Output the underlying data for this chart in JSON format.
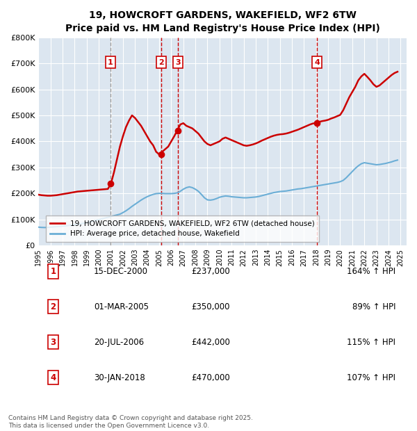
{
  "title": "19, HOWCROFT GARDENS, WAKEFIELD, WF2 6TW",
  "subtitle": "Price paid vs. HM Land Registry's House Price Index (HPI)",
  "background_color": "#ffffff",
  "chart_bg_color": "#dce6f0",
  "grid_color": "#ffffff",
  "ylim": [
    0,
    800000
  ],
  "yticks": [
    0,
    100000,
    200000,
    300000,
    400000,
    500000,
    600000,
    700000,
    800000
  ],
  "ytick_labels": [
    "£0",
    "£100K",
    "£200K",
    "£300K",
    "£400K",
    "£500K",
    "£600K",
    "£700K",
    "£800K"
  ],
  "xlim_start": 1995.0,
  "xlim_end": 2025.5,
  "xticks": [
    1995,
    1996,
    1997,
    1998,
    1999,
    2000,
    2001,
    2002,
    2003,
    2004,
    2005,
    2006,
    2007,
    2008,
    2009,
    2010,
    2011,
    2012,
    2013,
    2014,
    2015,
    2016,
    2017,
    2018,
    2019,
    2020,
    2021,
    2022,
    2023,
    2024,
    2025
  ],
  "hpi_line_color": "#6baed6",
  "price_line_color": "#cc0000",
  "sale_dot_color": "#cc0000",
  "vline_color_dashed": "#cc0000",
  "vline_color_gray": "#999999",
  "legend_box_color": "#ffffff",
  "legend_border_color": "#aaaaaa",
  "sale_label_color": "#cc0000",
  "sale_label_border": "#cc0000",
  "legend1": "19, HOWCROFT GARDENS, WAKEFIELD, WF2 6TW (detached house)",
  "legend2": "HPI: Average price, detached house, Wakefield",
  "footer": "Contains HM Land Registry data © Crown copyright and database right 2025.\nThis data is licensed under the Open Government Licence v3.0.",
  "sales": [
    {
      "num": 1,
      "date_dec": 2000.96,
      "price": 237000,
      "label": "15-DEC-2000",
      "pct": "164%",
      "vline_style": "dashed_gray"
    },
    {
      "num": 2,
      "date_dec": 2005.17,
      "price": 350000,
      "label": "01-MAR-2005",
      "pct": "89%",
      "vline_style": "dashed_red"
    },
    {
      "num": 3,
      "date_dec": 2006.55,
      "price": 442000,
      "label": "20-JUL-2006",
      "pct": "115%",
      "vline_style": "dashed_red"
    },
    {
      "num": 4,
      "date_dec": 2018.08,
      "price": 470000,
      "label": "30-JAN-2018",
      "pct": "107%",
      "vline_style": "dashed_red"
    }
  ],
  "table_rows": [
    {
      "num": 1,
      "date": "15-DEC-2000",
      "price": "£237,000",
      "pct": "164% ↑ HPI"
    },
    {
      "num": 2,
      "date": "01-MAR-2005",
      "price": "£350,000",
      "pct": "89% ↑ HPI"
    },
    {
      "num": 3,
      "date": "20-JUL-2006",
      "price": "£442,000",
      "pct": "115% ↑ HPI"
    },
    {
      "num": 4,
      "date": "30-JAN-2018",
      "price": "£470,000",
      "pct": "107% ↑ HPI"
    }
  ],
  "hpi_data": {
    "years": [
      1995.0,
      1995.25,
      1995.5,
      1995.75,
      1996.0,
      1996.25,
      1996.5,
      1996.75,
      1997.0,
      1997.25,
      1997.5,
      1997.75,
      1998.0,
      1998.25,
      1998.5,
      1998.75,
      1999.0,
      1999.25,
      1999.5,
      1999.75,
      2000.0,
      2000.25,
      2000.5,
      2000.75,
      2001.0,
      2001.25,
      2001.5,
      2001.75,
      2002.0,
      2002.25,
      2002.5,
      2002.75,
      2003.0,
      2003.25,
      2003.5,
      2003.75,
      2004.0,
      2004.25,
      2004.5,
      2004.75,
      2005.0,
      2005.25,
      2005.5,
      2005.75,
      2006.0,
      2006.25,
      2006.5,
      2006.75,
      2007.0,
      2007.25,
      2007.5,
      2007.75,
      2008.0,
      2008.25,
      2008.5,
      2008.75,
      2009.0,
      2009.25,
      2009.5,
      2009.75,
      2010.0,
      2010.25,
      2010.5,
      2010.75,
      2011.0,
      2011.25,
      2011.5,
      2011.75,
      2012.0,
      2012.25,
      2012.5,
      2012.75,
      2013.0,
      2013.25,
      2013.5,
      2013.75,
      2014.0,
      2014.25,
      2014.5,
      2014.75,
      2015.0,
      2015.25,
      2015.5,
      2015.75,
      2016.0,
      2016.25,
      2016.5,
      2016.75,
      2017.0,
      2017.25,
      2017.5,
      2017.75,
      2018.0,
      2018.25,
      2018.5,
      2018.75,
      2019.0,
      2019.25,
      2019.5,
      2019.75,
      2020.0,
      2020.25,
      2020.5,
      2020.75,
      2021.0,
      2021.25,
      2021.5,
      2021.75,
      2022.0,
      2022.25,
      2022.5,
      2022.75,
      2023.0,
      2023.25,
      2023.5,
      2023.75,
      2024.0,
      2024.25,
      2024.5,
      2024.75
    ],
    "values": [
      70000,
      69000,
      68500,
      69000,
      70000,
      71000,
      72000,
      73000,
      74000,
      75000,
      76500,
      78000,
      79000,
      81000,
      83000,
      85000,
      87000,
      90000,
      93000,
      96000,
      99000,
      102000,
      105000,
      108000,
      111000,
      114000,
      117000,
      120000,
      126000,
      133000,
      141000,
      150000,
      158000,
      166000,
      174000,
      181000,
      187000,
      192000,
      196000,
      199000,
      200000,
      200000,
      199000,
      199000,
      199000,
      200000,
      202000,
      208000,
      216000,
      222000,
      225000,
      222000,
      216000,
      208000,
      196000,
      183000,
      175000,
      174000,
      176000,
      180000,
      185000,
      188000,
      190000,
      189000,
      187000,
      186000,
      185000,
      184000,
      183000,
      183000,
      184000,
      185000,
      186000,
      188000,
      191000,
      194000,
      197000,
      200000,
      203000,
      205000,
      207000,
      208000,
      209000,
      211000,
      213000,
      215000,
      217000,
      218000,
      220000,
      222000,
      224000,
      226000,
      228000,
      230000,
      232000,
      234000,
      236000,
      238000,
      240000,
      242000,
      245000,
      250000,
      260000,
      272000,
      284000,
      296000,
      306000,
      314000,
      318000,
      316000,
      314000,
      312000,
      310000,
      311000,
      313000,
      315000,
      318000,
      321000,
      325000,
      328000
    ]
  },
  "price_data": {
    "years": [
      1995.0,
      1995.25,
      1995.5,
      1995.75,
      1996.0,
      1996.25,
      1996.5,
      1996.75,
      1997.0,
      1997.25,
      1997.5,
      1997.75,
      1998.0,
      1998.25,
      1998.5,
      1998.75,
      1999.0,
      1999.25,
      1999.5,
      1999.75,
      2000.0,
      2000.25,
      2000.5,
      2000.75,
      2001.0,
      2001.25,
      2001.5,
      2001.75,
      2002.0,
      2002.25,
      2002.5,
      2002.75,
      2003.0,
      2003.25,
      2003.5,
      2003.75,
      2004.0,
      2004.25,
      2004.5,
      2004.75,
      2005.0,
      2005.25,
      2005.5,
      2005.75,
      2006.0,
      2006.25,
      2006.5,
      2006.75,
      2007.0,
      2007.25,
      2007.5,
      2007.75,
      2008.0,
      2008.25,
      2008.5,
      2008.75,
      2009.0,
      2009.25,
      2009.5,
      2009.75,
      2010.0,
      2010.25,
      2010.5,
      2010.75,
      2011.0,
      2011.25,
      2011.5,
      2011.75,
      2012.0,
      2012.25,
      2012.5,
      2012.75,
      2013.0,
      2013.25,
      2013.5,
      2013.75,
      2014.0,
      2014.25,
      2014.5,
      2014.75,
      2015.0,
      2015.25,
      2015.5,
      2015.75,
      2016.0,
      2016.25,
      2016.5,
      2016.75,
      2017.0,
      2017.25,
      2017.5,
      2017.75,
      2018.0,
      2018.25,
      2018.5,
      2018.75,
      2019.0,
      2019.25,
      2019.5,
      2019.75,
      2020.0,
      2020.25,
      2020.5,
      2020.75,
      2021.0,
      2021.25,
      2021.5,
      2021.75,
      2022.0,
      2022.25,
      2022.5,
      2022.75,
      2023.0,
      2023.25,
      2023.5,
      2023.75,
      2024.0,
      2024.25,
      2024.5,
      2024.75
    ],
    "values": [
      195000,
      193000,
      192000,
      191000,
      191000,
      192000,
      193000,
      195000,
      197000,
      199000,
      201000,
      203000,
      205000,
      207000,
      208000,
      209000,
      210000,
      211000,
      212000,
      213000,
      214000,
      215000,
      216000,
      217000,
      237000,
      280000,
      330000,
      380000,
      420000,
      455000,
      480000,
      500000,
      490000,
      475000,
      460000,
      440000,
      420000,
      400000,
      385000,
      360000,
      350000,
      360000,
      370000,
      380000,
      400000,
      420000,
      442000,
      465000,
      470000,
      460000,
      455000,
      450000,
      440000,
      430000,
      415000,
      400000,
      390000,
      385000,
      390000,
      395000,
      400000,
      410000,
      415000,
      410000,
      405000,
      400000,
      395000,
      390000,
      385000,
      383000,
      385000,
      388000,
      392000,
      397000,
      403000,
      408000,
      413000,
      418000,
      422000,
      425000,
      427000,
      428000,
      430000,
      433000,
      437000,
      441000,
      445000,
      450000,
      455000,
      460000,
      465000,
      469000,
      470000,
      475000,
      478000,
      480000,
      483000,
      488000,
      492000,
      497000,
      502000,
      520000,
      545000,
      570000,
      590000,
      610000,
      635000,
      650000,
      660000,
      648000,
      635000,
      620000,
      610000,
      615000,
      625000,
      635000,
      645000,
      655000,
      663000,
      668000
    ]
  }
}
